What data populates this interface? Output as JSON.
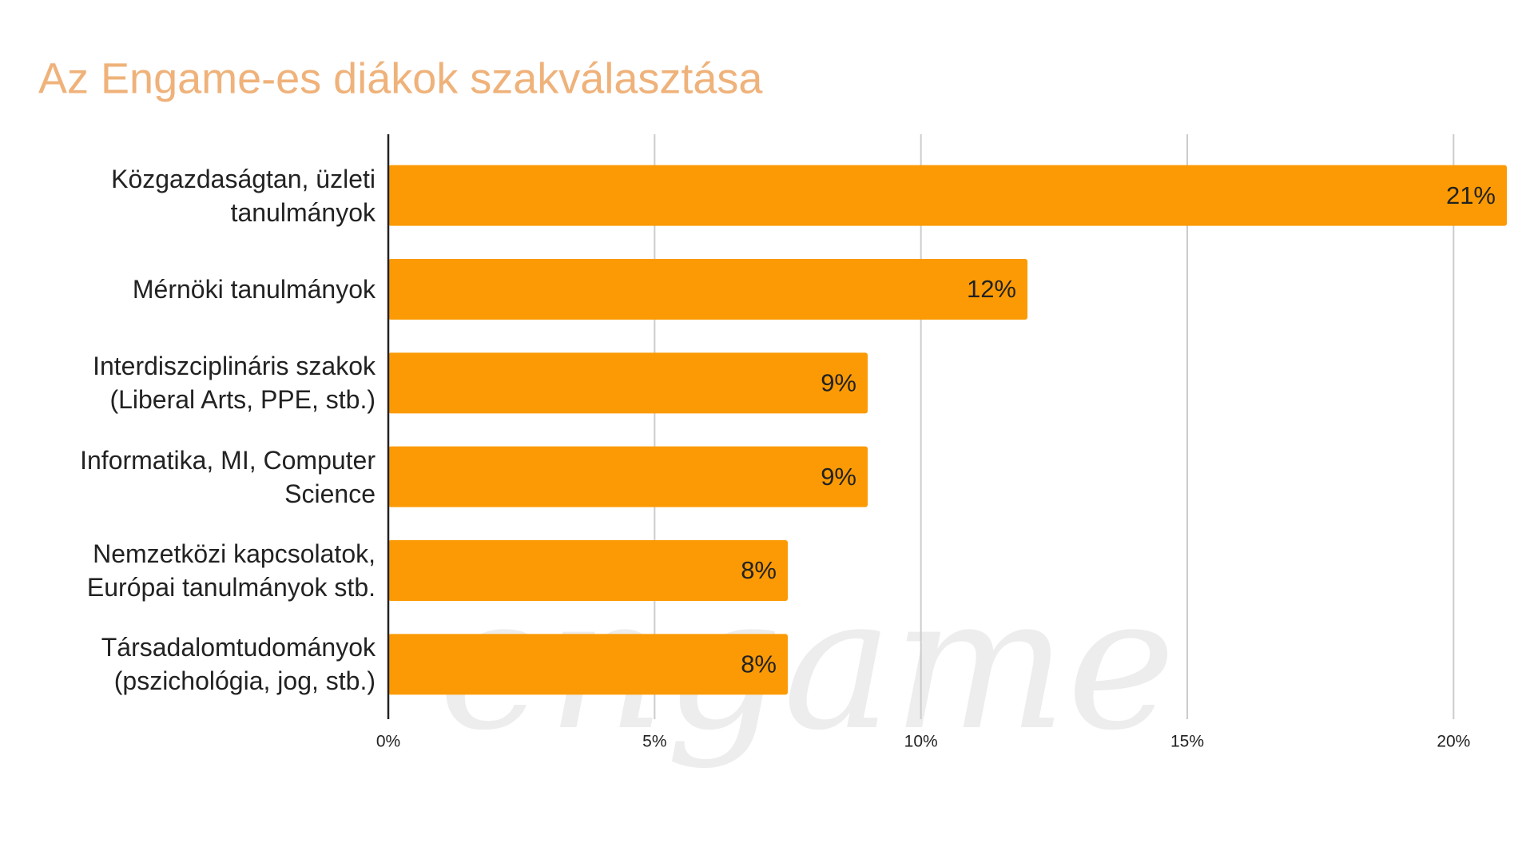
{
  "chart_data": {
    "type": "bar",
    "orientation": "horizontal",
    "title": "Az Engame-es diákok szakválasztása",
    "watermark": "engame",
    "categories": [
      "Közgazdaságtan, üzleti tanulmányok",
      "Mérnöki tanulmányok",
      "Interdiszciplináris szakok (Liberal Arts, PPE, stb.)",
      "Informatika, MI, Computer Science",
      "Nemzetközi kapcsolatok, Európai tanulmányok stb.",
      "Társadalomtudományok (pszichológia, jog, stb.)"
    ],
    "values": [
      21,
      12,
      9,
      9,
      7.5,
      7.5
    ],
    "value_labels": [
      "21%",
      "12%",
      "9%",
      "9%",
      "8%",
      "8%"
    ],
    "color": "#fb9a04",
    "xlim": [
      0,
      21
    ],
    "xticks": [
      {
        "value": 0,
        "label": "0%"
      },
      {
        "value": 5,
        "label": "5%"
      },
      {
        "value": 10,
        "label": "10%"
      },
      {
        "value": 15,
        "label": "15%"
      },
      {
        "value": 20,
        "label": "20%"
      }
    ],
    "grid": true
  }
}
